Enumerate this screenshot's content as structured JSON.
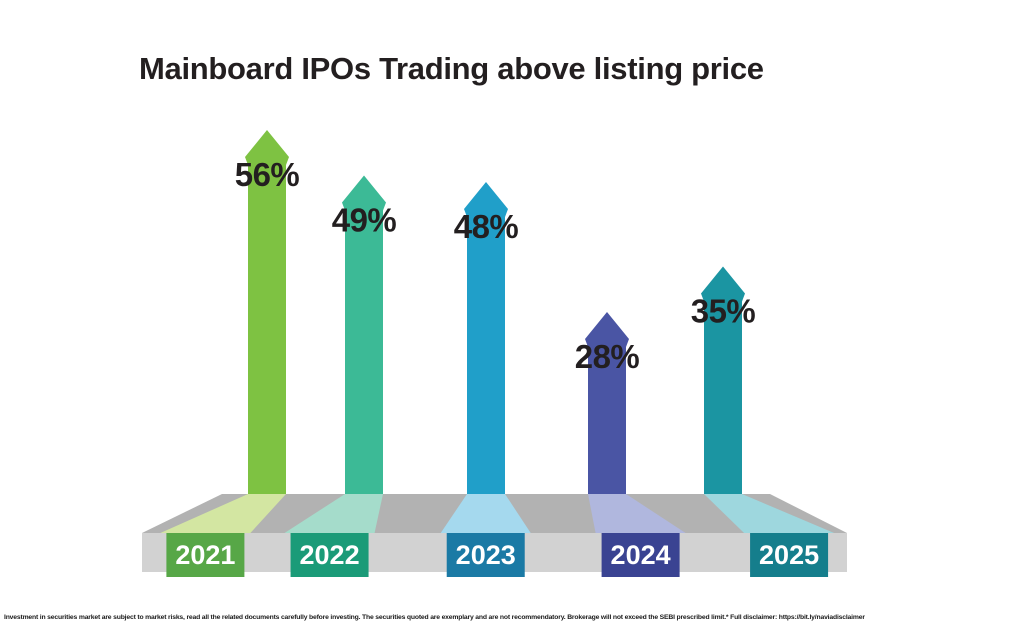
{
  "title": "Mainboard IPOs Trading above listing price",
  "footer": {
    "disclaimer": "Investment in securities market are subject to market risks, read all the related documents carefully before investing. The securities quoted are exemplary and are not recommendatory. Brokerage will not exceed the SEBI prescribed limit.* Full disclaimer: https://bit.ly/naviadisclaimer"
  },
  "chart_data": {
    "type": "bar",
    "style": "upward-arrow pictogram bars standing on a 3D gray platform",
    "title": "Mainboard IPOs Trading above listing price",
    "categories": [
      "2021",
      "2022",
      "2023",
      "2024",
      "2025"
    ],
    "values": [
      56,
      49,
      48,
      28,
      35
    ],
    "value_labels": [
      "56%",
      "49%",
      "48%",
      "28%",
      "35%"
    ],
    "xlabel": "",
    "ylabel": "",
    "ylim": [
      0,
      60
    ],
    "grid": false,
    "legend": "none",
    "colors": {
      "bars": [
        "#7ec242",
        "#3cba96",
        "#209fc9",
        "#4a55a4",
        "#1b95a2"
      ],
      "bar_tints": [
        "#d3e6a2",
        "#a5dccb",
        "#a5d9ee",
        "#b0b7de",
        "#9ed7de"
      ],
      "year_boxes": [
        "#57a747",
        "#1b9b78",
        "#1b7aa5",
        "#3a4392",
        "#157e8c"
      ],
      "value_text": "#231f20",
      "year_text": "#ffffff",
      "platform_top": "#b2b2b2",
      "platform_front": "#d2d2d2",
      "background": "#ffffff"
    }
  }
}
